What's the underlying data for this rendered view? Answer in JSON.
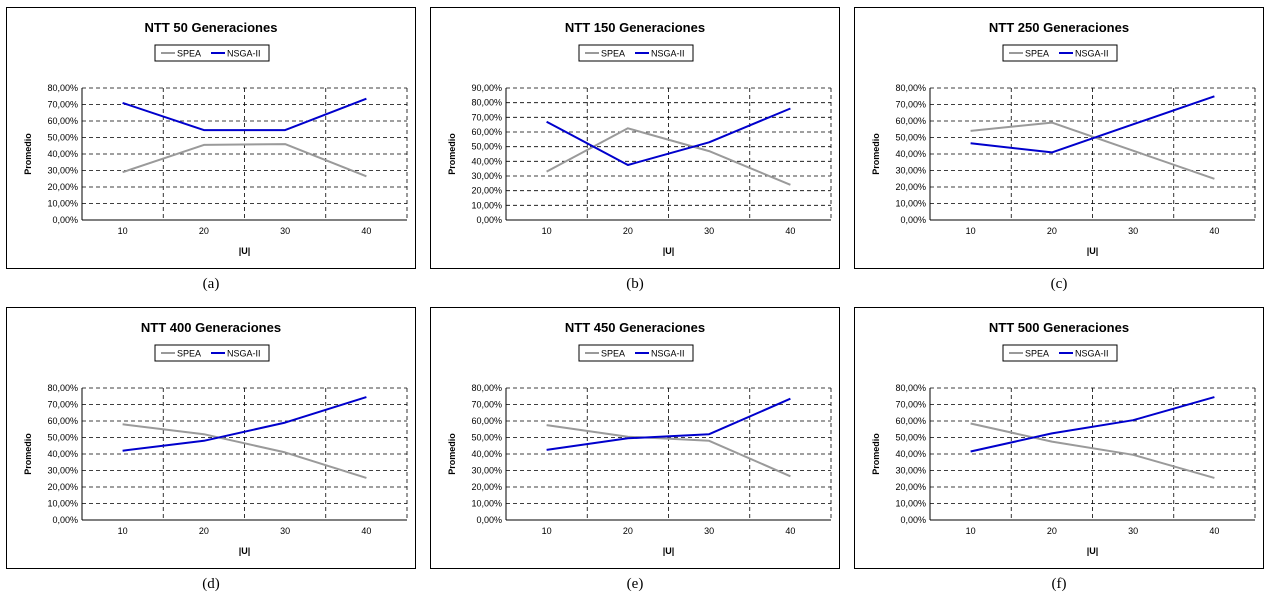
{
  "colors": {
    "SPEA": "#9a9a9a",
    "NSGA-II": "#0000cc"
  },
  "captions": [
    "(a)",
    "(b)",
    "(c)",
    "(d)",
    "(e)",
    "(f)"
  ],
  "chart_data": [
    {
      "type": "line",
      "title": "NTT 50 Generaciones",
      "xlabel": "|U|",
      "ylabel": "Promedio",
      "categories": [
        "10",
        "20",
        "30",
        "40"
      ],
      "ylim": [
        0,
        80
      ],
      "yticks": [
        "0,00%",
        "10,00%",
        "20,00%",
        "30,00%",
        "40,00%",
        "50,00%",
        "60,00%",
        "70,00%",
        "80,00%"
      ],
      "legend": [
        "SPEA",
        "NSGA-II"
      ],
      "series": [
        {
          "name": "SPEA",
          "values": [
            29,
            45.5,
            46,
            26.5
          ]
        },
        {
          "name": "NSGA-II",
          "values": [
            71,
            54.5,
            54.5,
            73.5
          ]
        }
      ]
    },
    {
      "type": "line",
      "title": "NTT 150 Generaciones",
      "xlabel": "|U|",
      "ylabel": "Promedio",
      "categories": [
        "10",
        "20",
        "30",
        "40"
      ],
      "ylim": [
        0,
        90
      ],
      "yticks": [
        "0,00%",
        "10,00%",
        "20,00%",
        "30,00%",
        "40,00%",
        "50,00%",
        "60,00%",
        "70,00%",
        "80,00%",
        "90,00%"
      ],
      "legend": [
        "SPEA",
        "NSGA-II"
      ],
      "series": [
        {
          "name": "SPEA",
          "values": [
            33,
            62.5,
            47,
            24
          ]
        },
        {
          "name": "NSGA-II",
          "values": [
            67,
            37.5,
            53,
            76
          ]
        }
      ]
    },
    {
      "type": "line",
      "title": "NTT 250 Generaciones",
      "xlabel": "|U|",
      "ylabel": "Promedio",
      "categories": [
        "10",
        "20",
        "30",
        "40"
      ],
      "ylim": [
        0,
        80
      ],
      "yticks": [
        "0,00%",
        "10,00%",
        "20,00%",
        "30,00%",
        "40,00%",
        "50,00%",
        "60,00%",
        "70,00%",
        "80,00%"
      ],
      "legend": [
        "SPEA",
        "NSGA-II"
      ],
      "series": [
        {
          "name": "SPEA",
          "values": [
            54,
            59,
            42,
            25
          ]
        },
        {
          "name": "NSGA-II",
          "values": [
            46.5,
            41,
            58,
            75
          ]
        }
      ]
    },
    {
      "type": "line",
      "title": "NTT 400 Generaciones",
      "xlabel": "|U|",
      "ylabel": "Promedio",
      "categories": [
        "10",
        "20",
        "30",
        "40"
      ],
      "ylim": [
        0,
        80
      ],
      "yticks": [
        "0,00%",
        "10,00%",
        "20,00%",
        "30,00%",
        "40,00%",
        "50,00%",
        "60,00%",
        "70,00%",
        "80,00%"
      ],
      "legend": [
        "SPEA",
        "NSGA-II"
      ],
      "series": [
        {
          "name": "SPEA",
          "values": [
            58,
            52,
            41,
            25.5
          ]
        },
        {
          "name": "NSGA-II",
          "values": [
            42,
            48,
            59,
            74.5
          ]
        }
      ]
    },
    {
      "type": "line",
      "title": "NTT 450 Generaciones",
      "xlabel": "|U|",
      "ylabel": "Promedio",
      "categories": [
        "10",
        "20",
        "30",
        "40"
      ],
      "ylim": [
        0,
        80
      ],
      "yticks": [
        "0,00%",
        "10,00%",
        "20,00%",
        "30,00%",
        "40,00%",
        "50,00%",
        "60,00%",
        "70,00%",
        "80,00%"
      ],
      "legend": [
        "SPEA",
        "NSGA-II"
      ],
      "series": [
        {
          "name": "SPEA",
          "values": [
            57.5,
            50.5,
            48,
            26.5
          ]
        },
        {
          "name": "NSGA-II",
          "values": [
            42.5,
            49.5,
            52,
            73.5
          ]
        }
      ]
    },
    {
      "type": "line",
      "title": "NTT 500 Generaciones",
      "xlabel": "|U|",
      "ylabel": "Promedio",
      "categories": [
        "10",
        "20",
        "30",
        "40"
      ],
      "ylim": [
        0,
        80
      ],
      "yticks": [
        "0,00%",
        "10,00%",
        "20,00%",
        "30,00%",
        "40,00%",
        "50,00%",
        "60,00%",
        "70,00%",
        "80,00%"
      ],
      "legend": [
        "SPEA",
        "NSGA-II"
      ],
      "series": [
        {
          "name": "SPEA",
          "values": [
            58.5,
            47.5,
            39.5,
            25.5
          ]
        },
        {
          "name": "NSGA-II",
          "values": [
            41.5,
            52.5,
            60.5,
            74.5
          ]
        }
      ]
    }
  ]
}
